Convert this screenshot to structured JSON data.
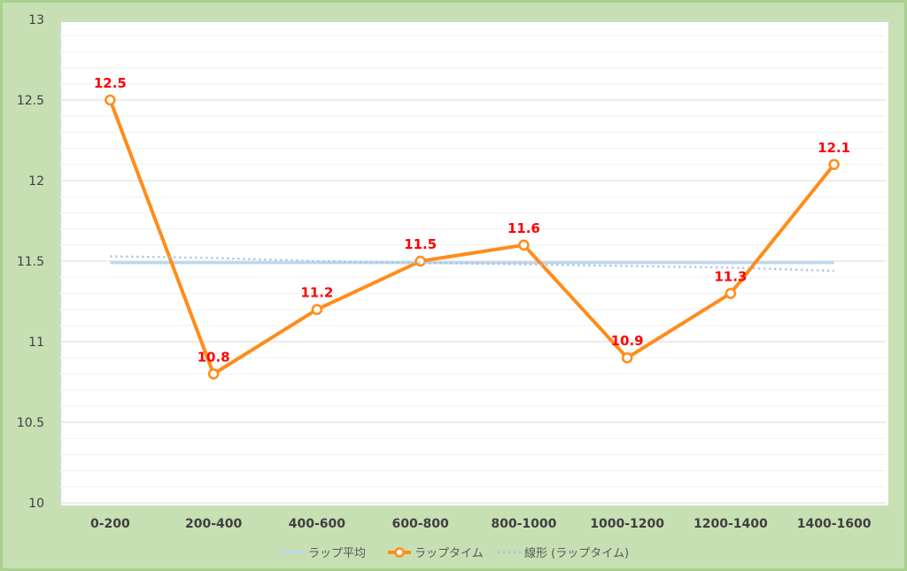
{
  "chart_data": {
    "type": "line",
    "categories": [
      "0-200",
      "200-400",
      "400-600",
      "600-800",
      "800-1000",
      "1000-1200",
      "1200-1400",
      "1400-1600"
    ],
    "ylim": [
      10,
      13
    ],
    "yticks": [
      "10",
      "10.5",
      "11",
      "11.5",
      "12",
      "12.5",
      "13"
    ],
    "series": [
      {
        "name": "ラップ平均",
        "values": [
          11.49,
          11.49,
          11.49,
          11.49,
          11.49,
          11.49,
          11.49,
          11.49
        ],
        "color": "#bdd7ee",
        "style": "solid"
      },
      {
        "name": "ラップタイム",
        "values": [
          12.5,
          10.8,
          11.2,
          11.5,
          11.6,
          10.9,
          11.3,
          12.1
        ],
        "color": "#ff8c1a",
        "style": "solid-markers"
      },
      {
        "name": "線形 (ラップタイム)",
        "values": [
          11.53,
          11.52,
          11.5,
          11.49,
          11.48,
          11.47,
          11.46,
          11.44
        ],
        "color": "#9dc3e6",
        "style": "dotted"
      }
    ],
    "data_labels": [
      "12.5",
      "10.8",
      "11.2",
      "11.5",
      "11.6",
      "10.9",
      "11.3",
      "12.1"
    ],
    "data_label_color": "#ff0000",
    "grid": true,
    "legend_position": "bottom"
  },
  "legend": {
    "items": [
      "ラップ平均",
      "ラップタイム",
      "線形 (ラップタイム)"
    ]
  }
}
